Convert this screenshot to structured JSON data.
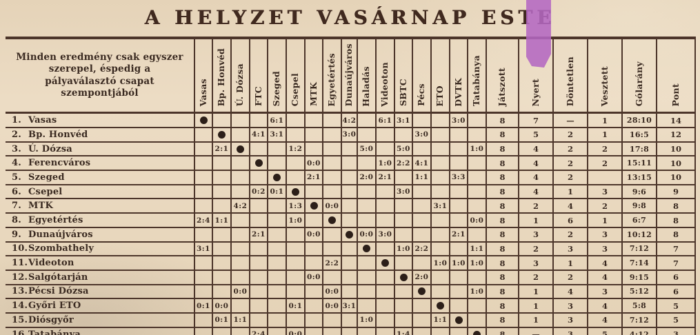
{
  "title": "A HELYZET VASÁRNAP ESTE",
  "note": "Minden eredmény csak egyszer szerepel, éspedig a pályaválasztó csapat szempontjából",
  "opponents": [
    "Vasas",
    "Bp. Honvéd",
    "Ú. Dózsa",
    "FTC",
    "Szeged",
    "Csepel",
    "MTK",
    "Egyetértés",
    "Dunaújváros",
    "Haladás",
    "Videoton",
    "SBTC",
    "Pécs",
    "ETO",
    "DVTK",
    "Tatabánya"
  ],
  "stat_columns": [
    "Játszott",
    "Nyert",
    "Döntetlen",
    "Vesztett",
    "Gólarány",
    "Pont"
  ],
  "self_marker": "●",
  "highlight": {
    "over_column": "Nyert",
    "color": "#b468c2"
  },
  "colors": {
    "paper": "#e9d8bf",
    "ink": "#3a2a21",
    "line": "#4c352a"
  },
  "rows": [
    {
      "rank": "1.",
      "team": "Vasas",
      "results": [
        "●",
        "",
        "",
        "",
        "6:1",
        "",
        "",
        "",
        "4:2",
        "",
        "6:1",
        "3:1",
        "",
        "",
        "3:0",
        ""
      ],
      "stats": [
        "8",
        "7",
        "—",
        "1",
        "28:10",
        "14"
      ]
    },
    {
      "rank": "2.",
      "team": "Bp. Honvéd",
      "results": [
        "",
        "●",
        "",
        "4:1",
        "3:1",
        "",
        "",
        "",
        "3:0",
        "",
        "",
        "",
        "3:0",
        "",
        "",
        ""
      ],
      "stats": [
        "8",
        "5",
        "2",
        "1",
        "16:5",
        "12"
      ]
    },
    {
      "rank": "3.",
      "team": "Ú. Dózsa",
      "results": [
        "",
        "2:1",
        "●",
        "",
        "",
        "1:2",
        "",
        "",
        "",
        "5:0",
        "",
        "5:0",
        "",
        "",
        "",
        "1:0"
      ],
      "stats": [
        "8",
        "4",
        "2",
        "2",
        "17:8",
        "10"
      ]
    },
    {
      "rank": "4.",
      "team": "Ferencváros",
      "results": [
        "",
        "",
        "",
        "●",
        "",
        "",
        "0:0",
        "",
        "",
        "",
        "1:0",
        "2:2",
        "4:1",
        "",
        "",
        ""
      ],
      "stats": [
        "8",
        "4",
        "2",
        "2",
        "15:11",
        "10"
      ]
    },
    {
      "rank": "5.",
      "team": "Szeged",
      "results": [
        "",
        "",
        "",
        "",
        "●",
        "",
        "2:1",
        "",
        "",
        "2:0",
        "2:1",
        "",
        "1:1",
        "",
        "3:3",
        ""
      ],
      "stats": [
        "8",
        "4",
        "2",
        "",
        "13:15",
        "10"
      ]
    },
    {
      "rank": "6.",
      "team": "Csepel",
      "results": [
        "",
        "",
        "",
        "0:2",
        "0:1",
        "●",
        "",
        "",
        "",
        "",
        "",
        "3:0",
        "",
        "",
        "",
        ""
      ],
      "stats": [
        "8",
        "4",
        "1",
        "3",
        "9:6",
        "9"
      ]
    },
    {
      "rank": "7.",
      "team": "MTK",
      "results": [
        "",
        "",
        "4:2",
        "",
        "",
        "1:3",
        "●",
        "0:0",
        "",
        "",
        "",
        "",
        "",
        "3:1",
        "",
        ""
      ],
      "stats": [
        "8",
        "2",
        "4",
        "2",
        "9:8",
        "8"
      ]
    },
    {
      "rank": "8.",
      "team": "Egyetértés",
      "results": [
        "2:4",
        "1:1",
        "",
        "",
        "",
        "1:0",
        "",
        "●",
        "",
        "",
        "",
        "",
        "",
        "",
        "",
        "0:0"
      ],
      "stats": [
        "8",
        "1",
        "6",
        "1",
        "6:7",
        "8"
      ]
    },
    {
      "rank": "9.",
      "team": "Dunaújváros",
      "results": [
        "",
        "",
        "",
        "2:1",
        "",
        "",
        "0:0",
        "",
        "●",
        "0:0",
        "3:0",
        "",
        "",
        "",
        "2:1",
        ""
      ],
      "stats": [
        "8",
        "3",
        "2",
        "3",
        "10:12",
        "8"
      ]
    },
    {
      "rank": "10.",
      "team": "Szombathely",
      "results": [
        "3:1",
        "",
        "",
        "",
        "",
        "",
        "",
        "",
        "",
        "●",
        "",
        "1:0",
        "2:2",
        "",
        "",
        "1:1"
      ],
      "stats": [
        "8",
        "2",
        "3",
        "3",
        "7:12",
        "7"
      ]
    },
    {
      "rank": "11.",
      "team": "Videoton",
      "results": [
        "",
        "",
        "",
        "",
        "",
        "",
        "",
        "2:2",
        "",
        "",
        "●",
        "",
        "",
        "1:0",
        "1:0",
        "1:0"
      ],
      "stats": [
        "8",
        "3",
        "1",
        "4",
        "7:14",
        "7"
      ]
    },
    {
      "rank": "12.",
      "team": "Salgótarján",
      "results": [
        "",
        "",
        "",
        "",
        "",
        "",
        "0:0",
        "",
        "",
        "",
        "",
        "●",
        "2:0",
        "",
        "",
        ""
      ],
      "stats": [
        "8",
        "2",
        "2",
        "4",
        "9:15",
        "6"
      ]
    },
    {
      "rank": "13.",
      "team": "Pécsi Dózsa",
      "results": [
        "",
        "",
        "0:0",
        "",
        "",
        "",
        "",
        "0:0",
        "",
        "",
        "",
        "",
        "●",
        "",
        "",
        "1:0"
      ],
      "stats": [
        "8",
        "1",
        "4",
        "3",
        "5:12",
        "6"
      ]
    },
    {
      "rank": "14.",
      "team": "Győri ETO",
      "results": [
        "0:1",
        "0:0",
        "",
        "",
        "",
        "0:1",
        "",
        "0:0",
        "3:1",
        "",
        "",
        "",
        "",
        "●",
        "",
        ""
      ],
      "stats": [
        "8",
        "1",
        "3",
        "4",
        "5:8",
        "5"
      ]
    },
    {
      "rank": "15.",
      "team": "Diósgyőr",
      "results": [
        "",
        "0:1",
        "1:1",
        "",
        "",
        "",
        "",
        "",
        "",
        "1:0",
        "",
        "",
        "",
        "1:1",
        "●",
        ""
      ],
      "stats": [
        "8",
        "1",
        "3",
        "4",
        "7:12",
        "5"
      ]
    },
    {
      "rank": "16.",
      "team": "Tatabánya",
      "results": [
        "",
        "",
        "",
        "2:4",
        "",
        "0:0",
        "",
        "",
        "",
        "",
        "",
        "1:4",
        "",
        "",
        "",
        "●"
      ],
      "stats": [
        "8",
        "—",
        "3",
        "5",
        "4:12",
        "3"
      ]
    }
  ]
}
